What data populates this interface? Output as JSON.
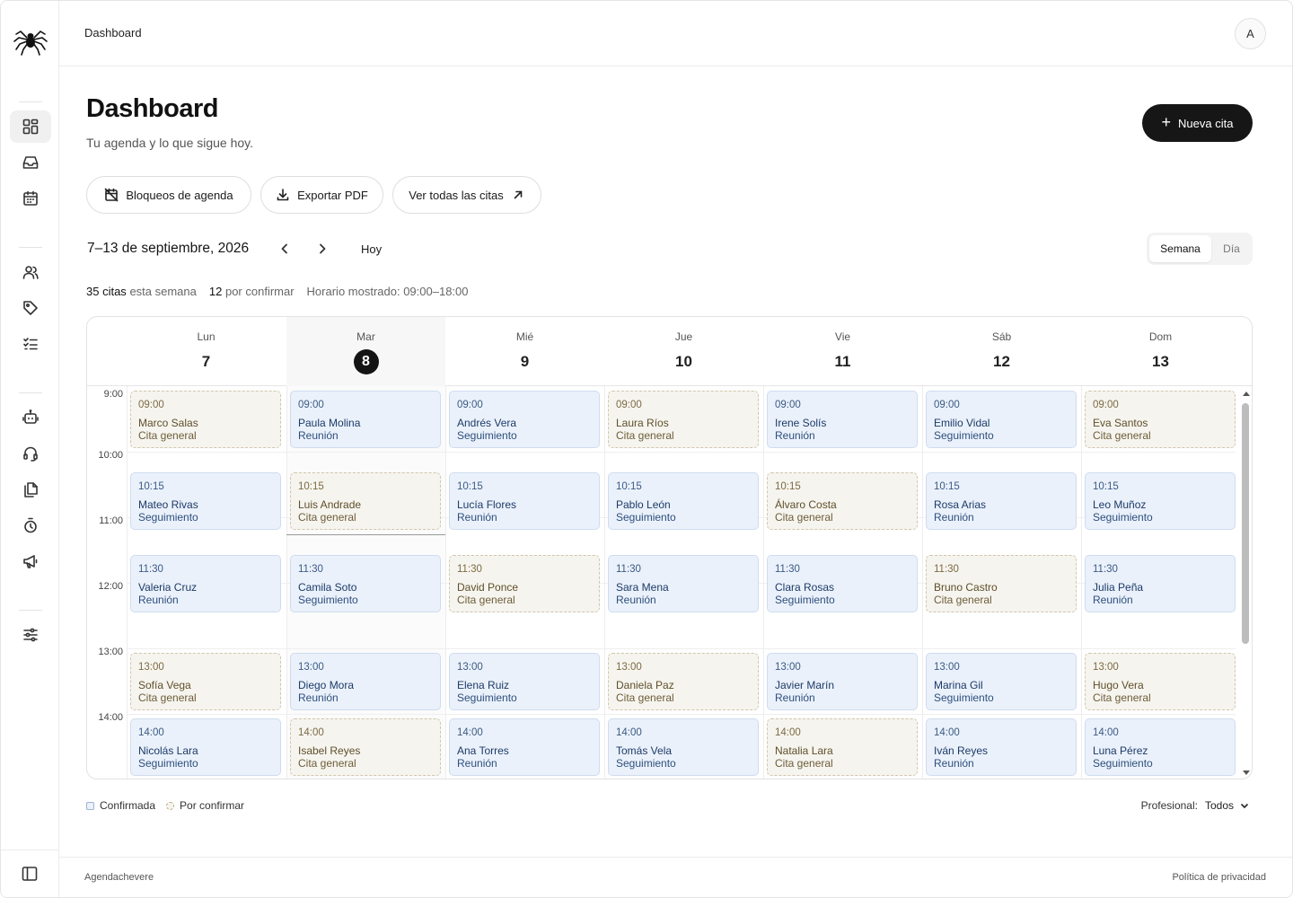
{
  "header": {
    "breadcrumb": "Dashboard",
    "avatar_initial": "A"
  },
  "page": {
    "title": "Dashboard",
    "subtitle": "Tu agenda y lo que sigue hoy.",
    "new_button": "Nueva cita",
    "actions": [
      "Bloqueos de agenda",
      "Exportar PDF",
      "Ver todas las citas"
    ]
  },
  "nav": {
    "range": "7–13 de septiembre, 2026",
    "today": "Hoy",
    "views": [
      "Semana",
      "Día"
    ],
    "active_view": "Semana"
  },
  "stats": {
    "count": "35 citas",
    "count_suffix": "esta semana",
    "pending": "12",
    "pending_suffix": "por confirmar",
    "hours": "Horario mostrado: 09:00–18:00"
  },
  "days": [
    {
      "name": "Lun",
      "num": "7"
    },
    {
      "name": "Mar",
      "num": "8"
    },
    {
      "name": "Mié",
      "num": "9"
    },
    {
      "name": "Jue",
      "num": "10"
    },
    {
      "name": "Vie",
      "num": "11"
    },
    {
      "name": "Sáb",
      "num": "12"
    },
    {
      "name": "Dom",
      "num": "13"
    }
  ],
  "today_index": 1,
  "hours": [
    "9:00",
    "10:00",
    "11:00",
    "12:00",
    "13:00",
    "14:00"
  ],
  "events": [
    [
      {
        "time": "09:00",
        "name": "Marco Salas",
        "kind": "Cita general",
        "status": "pending"
      },
      {
        "time": "10:15",
        "name": "Mateo Rivas",
        "kind": "Seguimiento",
        "status": "confirmed"
      },
      {
        "time": "11:30",
        "name": "Valeria Cruz",
        "kind": "Reunión",
        "status": "confirmed"
      },
      {
        "time": "13:00",
        "name": "Sofía Vega",
        "kind": "Cita general",
        "status": "pending"
      },
      {
        "time": "14:00",
        "name": "Nicolás Lara",
        "kind": "Seguimiento",
        "status": "confirmed"
      }
    ],
    [
      {
        "time": "09:00",
        "name": "Paula Molina",
        "kind": "Reunión",
        "status": "confirmed"
      },
      {
        "time": "10:15",
        "name": "Luis Andrade",
        "kind": "Cita general",
        "status": "pending"
      },
      {
        "time": "11:30",
        "name": "Camila Soto",
        "kind": "Seguimiento",
        "status": "confirmed"
      },
      {
        "time": "13:00",
        "name": "Diego Mora",
        "kind": "Reunión",
        "status": "confirmed"
      },
      {
        "time": "14:00",
        "name": "Isabel Reyes",
        "kind": "Cita general",
        "status": "pending"
      }
    ],
    [
      {
        "time": "09:00",
        "name": "Andrés Vera",
        "kind": "Seguimiento",
        "status": "confirmed"
      },
      {
        "time": "10:15",
        "name": "Lucía Flores",
        "kind": "Reunión",
        "status": "confirmed"
      },
      {
        "time": "11:30",
        "name": "David Ponce",
        "kind": "Cita general",
        "status": "pending"
      },
      {
        "time": "13:00",
        "name": "Elena Ruiz",
        "kind": "Seguimiento",
        "status": "confirmed"
      },
      {
        "time": "14:00",
        "name": "Ana Torres",
        "kind": "Reunión",
        "status": "confirmed"
      }
    ],
    [
      {
        "time": "09:00",
        "name": "Laura Ríos",
        "kind": "Cita general",
        "status": "pending"
      },
      {
        "time": "10:15",
        "name": "Pablo León",
        "kind": "Seguimiento",
        "status": "confirmed"
      },
      {
        "time": "11:30",
        "name": "Sara Mena",
        "kind": "Reunión",
        "status": "confirmed"
      },
      {
        "time": "13:00",
        "name": "Daniela Paz",
        "kind": "Cita general",
        "status": "pending"
      },
      {
        "time": "14:00",
        "name": "Tomás Vela",
        "kind": "Seguimiento",
        "status": "confirmed"
      }
    ],
    [
      {
        "time": "09:00",
        "name": "Irene Solís",
        "kind": "Reunión",
        "status": "confirmed"
      },
      {
        "time": "10:15",
        "name": "Álvaro Costa",
        "kind": "Cita general",
        "status": "pending"
      },
      {
        "time": "11:30",
        "name": "Clara Rosas",
        "kind": "Seguimiento",
        "status": "confirmed"
      },
      {
        "time": "13:00",
        "name": "Javier Marín",
        "kind": "Reunión",
        "status": "confirmed"
      },
      {
        "time": "14:00",
        "name": "Natalia Lara",
        "kind": "Cita general",
        "status": "pending"
      }
    ],
    [
      {
        "time": "09:00",
        "name": "Emilio Vidal",
        "kind": "Seguimiento",
        "status": "confirmed"
      },
      {
        "time": "10:15",
        "name": "Rosa Arias",
        "kind": "Reunión",
        "status": "confirmed"
      },
      {
        "time": "11:30",
        "name": "Bruno Castro",
        "kind": "Cita general",
        "status": "pending"
      },
      {
        "time": "13:00",
        "name": "Marina Gil",
        "kind": "Seguimiento",
        "status": "confirmed"
      },
      {
        "time": "14:00",
        "name": "Iván Reyes",
        "kind": "Reunión",
        "status": "confirmed"
      }
    ],
    [
      {
        "time": "09:00",
        "name": "Eva Santos",
        "kind": "Cita general",
        "status": "pending"
      },
      {
        "time": "10:15",
        "name": "Leo Muñoz",
        "kind": "Seguimiento",
        "status": "confirmed"
      },
      {
        "time": "11:30",
        "name": "Julia Peña",
        "kind": "Reunión",
        "status": "confirmed"
      },
      {
        "time": "13:00",
        "name": "Hugo Vera",
        "kind": "Cita general",
        "status": "pending"
      },
      {
        "time": "14:00",
        "name": "Luna Pérez",
        "kind": "Seguimiento",
        "status": "confirmed"
      }
    ]
  ],
  "legend": {
    "confirmed": "Confirmada",
    "pending": "Por confirmar"
  },
  "filter": {
    "label": "Profesional:",
    "value": "Todos"
  },
  "footer": {
    "left": "Agendachevere",
    "right": "Política de privacidad"
  },
  "icons": {
    "sidebar": [
      "dashboard-icon",
      "inbox-icon",
      "calendar-icon",
      "users-icon",
      "tag-icon",
      "checklist-icon",
      "bot-icon",
      "headset-icon",
      "documents-icon",
      "timer-icon",
      "megaphone-icon",
      "sliders-icon"
    ]
  },
  "colors": {
    "primary": "#161616",
    "confirmed_bg": "#eaf1fb",
    "pending_bg": "#f6f4ee"
  }
}
